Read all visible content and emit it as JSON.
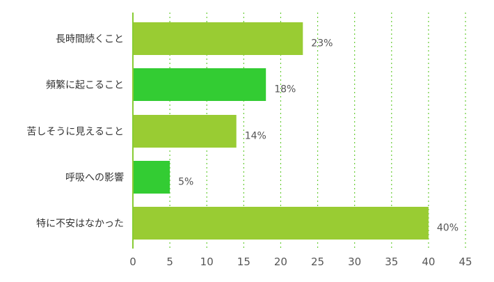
{
  "chart_data": {
    "type": "bar",
    "orientation": "horizontal",
    "categories": [
      "長時間続くこと",
      "頻繁に起こること",
      "苦しそうに見えること",
      "呼吸への影響",
      "特に不安はなかった"
    ],
    "values": [
      23,
      18,
      14,
      5,
      40
    ],
    "value_labels": [
      "23%",
      "18%",
      "14%",
      "5%",
      "40%"
    ],
    "bar_colors": [
      "#99cc33",
      "#33cc33",
      "#99cc33",
      "#33cc33",
      "#99cc33"
    ],
    "grid_color": "#66cc33",
    "axis_color": "#88cc33",
    "xlim": [
      0,
      45
    ],
    "xticks": [
      "0",
      "5",
      "10",
      "15",
      "20",
      "25",
      "30",
      "35",
      "40",
      "45"
    ],
    "grid": true,
    "title": "",
    "xlabel": "",
    "ylabel": ""
  }
}
